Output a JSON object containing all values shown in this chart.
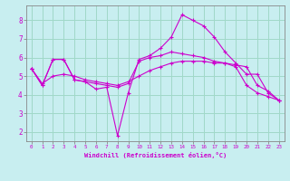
{
  "xlabel": "Windchill (Refroidissement éolien,°C)",
  "background_color": "#c8eef0",
  "grid_color": "#a0d8c8",
  "line_color": "#cc00cc",
  "spine_color": "#888888",
  "xlim": [
    -0.5,
    23.5
  ],
  "ylim": [
    1.5,
    8.8
  ],
  "xticks": [
    0,
    1,
    2,
    3,
    4,
    5,
    6,
    7,
    8,
    9,
    10,
    11,
    12,
    13,
    14,
    15,
    16,
    17,
    18,
    19,
    20,
    21,
    22,
    23
  ],
  "yticks": [
    2,
    3,
    4,
    5,
    6,
    7,
    8
  ],
  "series": [
    {
      "x": [
        0,
        1,
        2,
        3,
        4,
        5,
        6,
        7,
        8,
        9,
        10,
        11,
        12,
        13,
        14,
        15,
        16,
        17,
        18,
        19,
        20,
        21,
        22,
        23
      ],
      "y": [
        5.4,
        4.5,
        5.9,
        5.9,
        4.8,
        4.7,
        4.3,
        4.4,
        1.8,
        4.1,
        5.9,
        6.1,
        6.5,
        7.1,
        8.3,
        8.0,
        7.7,
        7.1,
        6.3,
        5.7,
        5.1,
        5.1,
        4.1,
        3.7
      ]
    },
    {
      "x": [
        0,
        1,
        2,
        3,
        4,
        5,
        6,
        7,
        8,
        9,
        10,
        11,
        12,
        13,
        14,
        15,
        16,
        17,
        18,
        19,
        20,
        21,
        22,
        23
      ],
      "y": [
        5.4,
        4.5,
        5.9,
        5.9,
        4.8,
        4.7,
        4.6,
        4.5,
        4.4,
        4.6,
        5.8,
        6.0,
        6.1,
        6.3,
        6.2,
        6.1,
        6.0,
        5.8,
        5.7,
        5.5,
        4.5,
        4.1,
        3.9,
        3.7
      ]
    },
    {
      "x": [
        0,
        1,
        2,
        3,
        4,
        5,
        6,
        7,
        8,
        9,
        10,
        11,
        12,
        13,
        14,
        15,
        16,
        17,
        18,
        19,
        20,
        21,
        22,
        23
      ],
      "y": [
        5.4,
        4.6,
        5.0,
        5.1,
        5.0,
        4.8,
        4.7,
        4.6,
        4.5,
        4.7,
        5.0,
        5.3,
        5.5,
        5.7,
        5.8,
        5.8,
        5.8,
        5.7,
        5.7,
        5.6,
        5.5,
        4.5,
        4.2,
        3.7
      ]
    }
  ]
}
